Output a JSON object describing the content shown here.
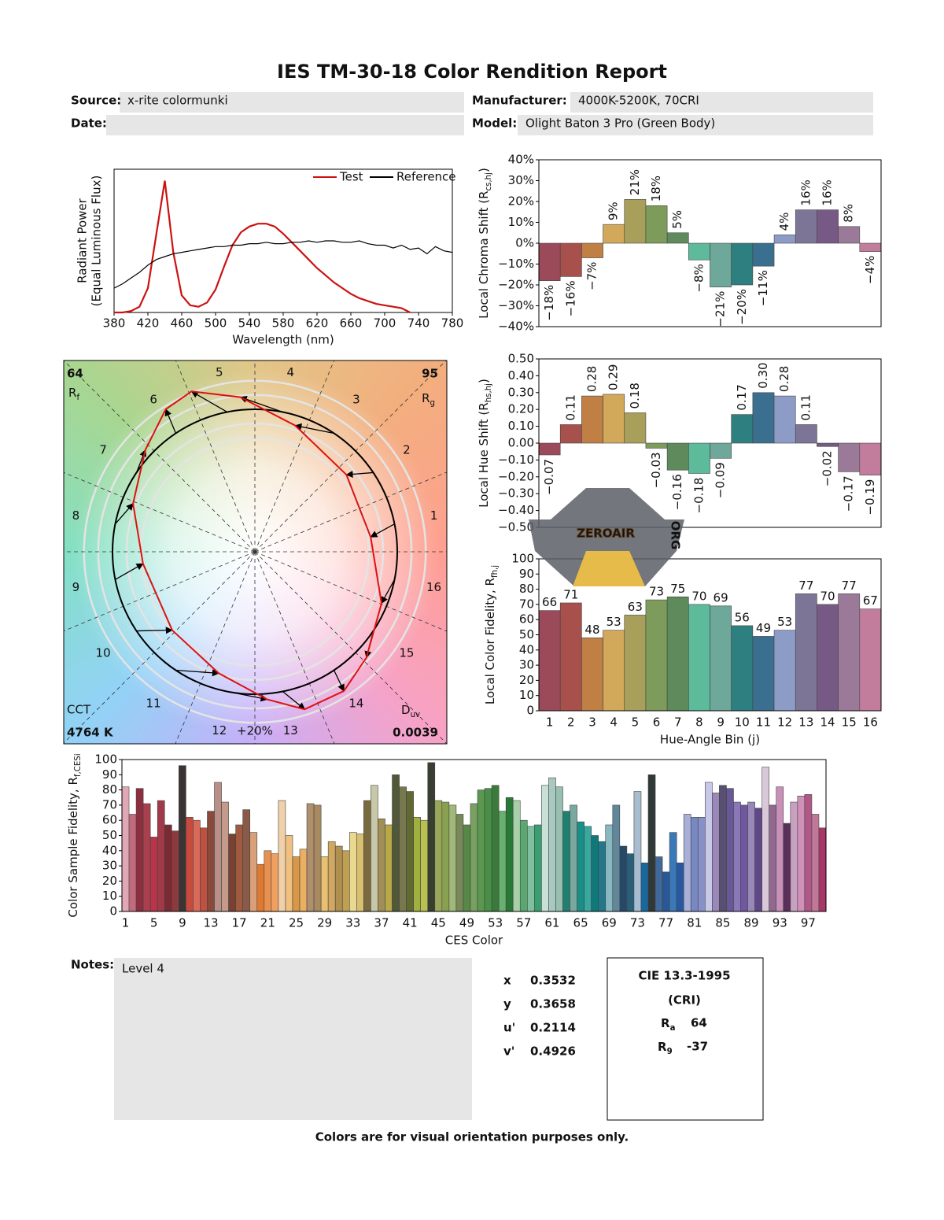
{
  "title": "IES TM-30-18 Color Rendition Report",
  "fields": [
    {
      "label": "Source:",
      "value": "x-rite colormunki"
    },
    {
      "label": "Manufacturer:",
      "value": "4000K-5200K, 70CRI"
    },
    {
      "label": "Date:"
    },
    {
      "label": "Model:",
      "value": "Olight Baton 3 Pro (Green Body)"
    }
  ],
  "chart_data": [
    {
      "type": "line",
      "xlabel": "Wavelength (nm)",
      "ylabel": "Radiant Power",
      "ylabel_note": "(Equal Luminous Flux)",
      "legend": "upper right",
      "x": [
        380,
        390,
        400,
        410,
        420,
        430,
        440,
        450,
        460,
        470,
        480,
        490,
        500,
        510,
        520,
        530,
        540,
        550,
        560,
        570,
        580,
        590,
        600,
        610,
        620,
        630,
        640,
        650,
        660,
        670,
        680,
        690,
        700,
        710,
        720,
        730,
        740,
        750,
        760,
        770,
        780
      ],
      "xlim": [
        380,
        780
      ],
      "xticks": [
        380,
        420,
        460,
        500,
        540,
        580,
        620,
        660,
        700,
        740,
        780
      ],
      "ylim": [
        0,
        1
      ],
      "series": [
        {
          "name": "Test",
          "color": "#cc1111",
          "values": [
            0,
            0,
            0.01,
            0.04,
            0.17,
            0.55,
            0.92,
            0.42,
            0.12,
            0.05,
            0.04,
            0.07,
            0.16,
            0.32,
            0.47,
            0.56,
            0.6,
            0.62,
            0.62,
            0.6,
            0.55,
            0.49,
            0.43,
            0.37,
            0.31,
            0.26,
            0.21,
            0.17,
            0.13,
            0.1,
            0.08,
            0.06,
            0.05,
            0.04,
            0.03,
            0,
            null,
            null,
            null,
            null,
            null
          ]
        },
        {
          "name": "Reference",
          "color": "#000000",
          "values": [
            0.17,
            0.2,
            0.24,
            0.28,
            0.33,
            0.37,
            0.39,
            0.41,
            0.42,
            0.43,
            0.44,
            0.45,
            0.46,
            0.46,
            0.47,
            0.47,
            0.48,
            0.48,
            0.49,
            0.48,
            0.48,
            0.49,
            0.49,
            0.5,
            0.49,
            0.5,
            0.5,
            0.49,
            0.49,
            0.5,
            0.48,
            0.47,
            0.47,
            0.45,
            0.47,
            0.44,
            0.45,
            0.41,
            0.46,
            0.43,
            0.42
          ]
        }
      ]
    },
    {
      "type": "bar",
      "ylabel": {
        "text": "Local Chroma Shift (R",
        "sub": "cs,hj",
        "end": ")"
      },
      "values": [
        -18,
        -16,
        -7,
        9,
        21,
        18,
        5,
        -8,
        -21,
        -20,
        -11,
        4,
        16,
        16,
        8,
        -4
      ],
      "value_labels": [
        "−18%",
        "−16%",
        "−7%",
        "9%",
        "21%",
        "18%",
        "5%",
        "−8%",
        "−21%",
        "−20%",
        "−11%",
        "4%",
        "16%",
        "16%",
        "8%",
        "−4%"
      ],
      "colors": [
        "#9b4a5a",
        "#a8514c",
        "#c07f45",
        "#d2a95a",
        "#a8a05a",
        "#7d9b5a",
        "#5e8a5c",
        "#5dba9a",
        "#6ea89a",
        "#2e7f80",
        "#3a6f8f",
        "#8d9cc6",
        "#7d7596",
        "#765a85",
        "#9a7a98",
        "#c27c9c"
      ],
      "ylim": [
        -40,
        40
      ],
      "yticks": [
        {
          "value": -40,
          "label": "−40%"
        },
        {
          "value": -30,
          "label": "−30%"
        },
        {
          "value": -20,
          "label": "−20%"
        },
        {
          "value": -10,
          "label": "−10%"
        },
        {
          "value": 0,
          "label": "0%"
        },
        {
          "value": 10,
          "label": "10%"
        },
        {
          "value": 20,
          "label": "20%"
        },
        {
          "value": 30,
          "label": "30%"
        },
        {
          "value": 40,
          "label": "40%"
        }
      ]
    },
    {
      "type": "bar",
      "ylabel": {
        "text": "Local Hue Shift (R",
        "sub": "hs,hj",
        "end": ")"
      },
      "values": [
        -0.07,
        0.11,
        0.28,
        0.29,
        0.18,
        -0.03,
        -0.16,
        -0.18,
        -0.09,
        0.17,
        0.3,
        0.28,
        0.11,
        -0.02,
        -0.17,
        -0.19
      ],
      "value_labels": [
        "−0.07",
        "0.11",
        "0.28",
        "0.29",
        "0.18",
        "−0.03",
        "−0.16",
        "−0.18",
        "−0.09",
        "0.17",
        "0.30",
        "0.28",
        "0.11",
        "−0.02",
        "−0.17",
        "−0.19"
      ],
      "colors": [
        "#9b4a5a",
        "#a8514c",
        "#c07f45",
        "#d2a95a",
        "#a8a05a",
        "#7d9b5a",
        "#5e8a5c",
        "#5dba9a",
        "#6ea89a",
        "#2e7f80",
        "#3a6f8f",
        "#8d9cc6",
        "#7d7596",
        "#765a85",
        "#9a7a98",
        "#c27c9c"
      ],
      "ylim": [
        -0.5,
        0.5
      ],
      "yticks": [
        {
          "value": -0.5,
          "label": "−0.50"
        },
        {
          "value": -0.4,
          "label": "−0.40"
        },
        {
          "value": -0.3,
          "label": "−0.30"
        },
        {
          "value": -0.2,
          "label": "−0.20"
        },
        {
          "value": -0.1,
          "label": "−0.10"
        },
        {
          "value": 0,
          "label": "0.00"
        },
        {
          "value": 0.1,
          "label": "0.10"
        },
        {
          "value": 0.2,
          "label": "0.20"
        },
        {
          "value": 0.3,
          "label": "0.30"
        },
        {
          "value": 0.4,
          "label": "0.40"
        },
        {
          "value": 0.5,
          "label": "0.50"
        }
      ]
    },
    {
      "type": "bar",
      "ylabel": {
        "text": "Local Color Fidelity, R",
        "sub": "fh,j"
      },
      "xlabel": "Hue-Angle Bin (j)",
      "data_labels": true,
      "categories": [
        1,
        2,
        3,
        4,
        5,
        6,
        7,
        8,
        9,
        10,
        11,
        12,
        13,
        14,
        15,
        16
      ],
      "values": [
        66,
        71,
        48,
        53,
        63,
        73,
        75,
        70,
        69,
        56,
        49,
        53,
        77,
        70,
        77,
        67
      ],
      "colors": [
        "#9b4a5a",
        "#a8514c",
        "#c07f45",
        "#d2a95a",
        "#a8a05a",
        "#7d9b5a",
        "#5e8a5c",
        "#5dba9a",
        "#6ea89a",
        "#2e7f80",
        "#3a6f8f",
        "#8d9cc6",
        "#7d7596",
        "#765a85",
        "#9a7a98",
        "#c27c9c"
      ],
      "ylim": [
        0,
        100
      ],
      "yticks": [
        0,
        10,
        20,
        30,
        40,
        50,
        60,
        70,
        80,
        90,
        100
      ]
    },
    {
      "type": "vector",
      "bins": [
        1,
        2,
        3,
        4,
        5,
        6,
        7,
        8,
        9,
        10,
        11,
        12,
        13,
        14,
        15,
        16
      ],
      "ring_label": "+20%",
      "rf": 64,
      "rf_label": {
        "text": "R",
        "sub": "f"
      },
      "rg": 95,
      "rg_label": {
        "text": "R",
        "sub": "g"
      },
      "cct_label": "CCT",
      "cct": "4764 K",
      "duv_label": {
        "text": "D",
        "sub": "uv"
      },
      "duv": 0.0039
    },
    {
      "type": "bar",
      "ylabel": {
        "text": "Color Sample Fidelity, R",
        "sub": "f,CESi"
      },
      "xlabel": "CES Color",
      "categories": [
        1,
        null,
        null,
        null,
        5,
        null,
        null,
        null,
        9,
        null,
        null,
        null,
        13,
        null,
        null,
        null,
        17,
        null,
        null,
        null,
        21,
        null,
        null,
        null,
        25,
        null,
        null,
        null,
        29,
        null,
        null,
        null,
        33,
        null,
        null,
        null,
        37,
        null,
        null,
        null,
        41,
        null,
        null,
        null,
        45,
        null,
        null,
        null,
        49,
        null,
        null,
        null,
        53,
        null,
        null,
        null,
        57,
        null,
        null,
        null,
        61,
        null,
        null,
        null,
        65,
        null,
        null,
        null,
        69,
        null,
        null,
        null,
        73,
        null,
        null,
        null,
        77,
        null,
        null,
        null,
        81,
        null,
        null,
        null,
        85,
        null,
        null,
        null,
        89,
        null,
        null,
        null,
        93,
        null,
        null,
        null,
        97,
        null,
        null
      ],
      "values": [
        82,
        64,
        81,
        71,
        49,
        73,
        57,
        53,
        96,
        62,
        60,
        55,
        66,
        85,
        72,
        51,
        57,
        67,
        52,
        31,
        40,
        38,
        73,
        50,
        36,
        41,
        71,
        70,
        36,
        46,
        43,
        40,
        52,
        51,
        73,
        83,
        61,
        57,
        90,
        82,
        79,
        62,
        60,
        98,
        73,
        72,
        70,
        64,
        57,
        71,
        80,
        81,
        83,
        66,
        75,
        73,
        60,
        56,
        57,
        83,
        88,
        82,
        66,
        70,
        59,
        56,
        50,
        46,
        57,
        70,
        43,
        38,
        79,
        32,
        90,
        36,
        26,
        52,
        32,
        64,
        62,
        62,
        85,
        78,
        83,
        81,
        72,
        70,
        72,
        68,
        95,
        70,
        82,
        58,
        72,
        76,
        77,
        64,
        55
      ],
      "colors": [
        "#e0a8b4",
        "#c46a7e",
        "#8e2e3e",
        "#a8404e",
        "#b83448",
        "#a03a4a",
        "#7a2a32",
        "#8c3a3e",
        "#3a3434",
        "#c84a3c",
        "#d86a5a",
        "#c05040",
        "#8a4a3a",
        "#b89088",
        "#c49a8a",
        "#7a4030",
        "#a05a40",
        "#8a5a48",
        "#d8a078",
        "#e07830",
        "#e89050",
        "#f0a060",
        "#f0d0a8",
        "#f0c080",
        "#d89848",
        "#e8b060",
        "#b0906c",
        "#a88a60",
        "#e8c070",
        "#d0a860",
        "#b09050",
        "#c0a050",
        "#e8d890",
        "#d8c070",
        "#7a6a40",
        "#c8c8a8",
        "#a09058",
        "#b8a848",
        "#505838",
        "#787850",
        "#606a30",
        "#a0b040",
        "#b8c050",
        "#383e30",
        "#98a858",
        "#88a050",
        "#a0b878",
        "#788858",
        "#588848",
        "#78a060",
        "#5a9850",
        "#489048",
        "#3a7a3a",
        "#68b070",
        "#287838",
        "#a8d0a8",
        "#58a870",
        "#80c0a0",
        "#38a070",
        "#c8e0d8",
        "#a8c8c0",
        "#98c0b0",
        "#208070",
        "#7aa8a0",
        "#189088",
        "#38a8a0",
        "#107878",
        "#20788a",
        "#88b8c0",
        "#60889a",
        "#284868",
        "#28607a",
        "#a8bcd0",
        "#1868a0",
        "#303838",
        "#406898",
        "#285898",
        "#3a78b8",
        "#2858a0",
        "#a8b0d8",
        "#7888c0",
        "#8890c8",
        "#c8c8e8",
        "#9a88b8",
        "#585070",
        "#685898",
        "#8a78b8",
        "#7058a0",
        "#9888b8",
        "#604888",
        "#d8c8d8",
        "#906890",
        "#c890b8",
        "#583058",
        "#c8a0c0",
        "#d090b8",
        "#b05888",
        "#c07898",
        "#a83868"
      ],
      "ylim": [
        0,
        100
      ],
      "yticks": [
        0,
        10,
        20,
        30,
        40,
        50,
        60,
        70,
        80,
        90,
        100
      ]
    }
  ],
  "notes": {
    "label": "Notes:",
    "text": "Level 4"
  },
  "chromaticity": [
    {
      "label": "x",
      "value": 0.3532
    },
    {
      "label": "y",
      "value": 0.3658
    },
    {
      "label": "u'",
      "value": 0.2114
    },
    {
      "label": "v'",
      "value": 0.4926
    }
  ],
  "cri": {
    "title": "CIE 13.3-1995",
    "subtitle": "(CRI)",
    "ra": {
      "text": "R",
      "sub": "a"
    },
    "ra_value": 64,
    "r9": {
      "text": "R",
      "sub": "9"
    },
    "r9_value": -37
  },
  "watermark": {
    "text": "ZEROAIR",
    "sub": "ORG"
  },
  "footer": "Colors are for visual orientation purposes only."
}
